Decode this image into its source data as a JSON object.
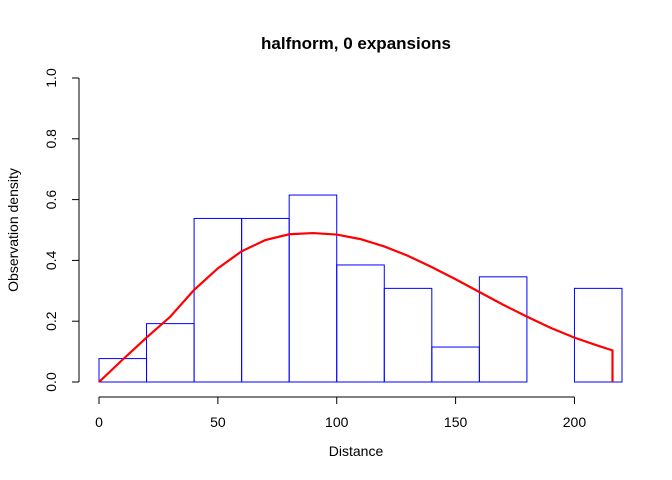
{
  "chart_data": {
    "type": "bar",
    "title": "halfnorm, 0 expansions",
    "xlabel": "Distance",
    "ylabel": "Observation density",
    "xlim": [
      0,
      220
    ],
    "ylim": [
      0,
      1
    ],
    "x_ticks": [
      0,
      50,
      100,
      150,
      200
    ],
    "y_ticks": [
      0.0,
      0.2,
      0.4,
      0.6,
      0.8,
      1.0
    ],
    "y_tick_labels": [
      "0.0",
      "0.2",
      "0.4",
      "0.6",
      "0.8",
      "1.0"
    ],
    "histogram": {
      "bin_edges": [
        0,
        20,
        40,
        60,
        80,
        100,
        120,
        140,
        160,
        180,
        200,
        220
      ],
      "values": [
        0.077,
        0.192,
        0.538,
        0.538,
        0.615,
        0.385,
        0.308,
        0.115,
        0.346,
        0.0,
        0.308
      ],
      "color": "#0000ff"
    },
    "fitted_curve": {
      "x": [
        0,
        10,
        20,
        30,
        40,
        50,
        60,
        70,
        80,
        90,
        100,
        110,
        120,
        130,
        140,
        150,
        160,
        170,
        180,
        190,
        200,
        210,
        216
      ],
      "y": [
        0.0,
        0.074,
        0.146,
        0.215,
        0.303,
        0.374,
        0.43,
        0.467,
        0.486,
        0.49,
        0.485,
        0.47,
        0.446,
        0.415,
        0.378,
        0.338,
        0.296,
        0.254,
        0.215,
        0.178,
        0.146,
        0.119,
        0.104
      ],
      "drop_to_zero_at": 216,
      "color": "#ff0000"
    }
  }
}
